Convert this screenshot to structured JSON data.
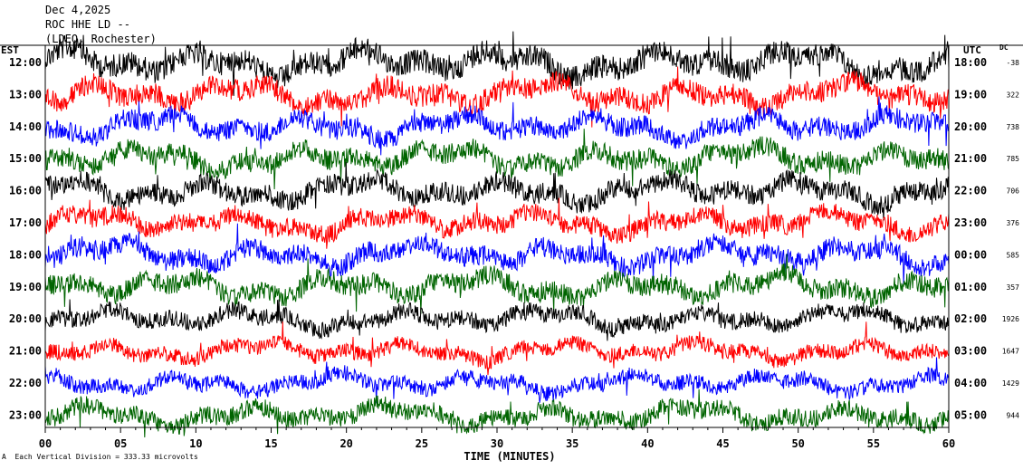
{
  "header": {
    "date": "Dec 4,2025",
    "station": "ROC HHE LD --",
    "location": "(LDEO, Rochester)"
  },
  "left_axis_label": "EST",
  "right_axis_label": "UTC",
  "dc_label": "DC",
  "footer": "Each Vertical Division = 333.33 microvolts",
  "footer_mark": "A",
  "colors": {
    "trace_cycle": [
      "#000000",
      "#ff0000",
      "#0000ff",
      "#006400"
    ],
    "frame": "#000000"
  },
  "chart_data": {
    "type": "line",
    "xlabel": "TIME (MINUTES)",
    "xlim": [
      0,
      60
    ],
    "x_ticks": [
      "00",
      "05",
      "10",
      "15",
      "20",
      "25",
      "30",
      "35",
      "40",
      "45",
      "50",
      "55",
      "60"
    ],
    "series": [
      {
        "est": "12:00",
        "utc": "18:00",
        "dc": "-38",
        "color": "#000000",
        "amp": 1.0
      },
      {
        "est": "13:00",
        "utc": "19:00",
        "dc": "322",
        "color": "#ff0000",
        "amp": 0.9
      },
      {
        "est": "14:00",
        "utc": "20:00",
        "dc": "738",
        "color": "#0000ff",
        "amp": 0.85
      },
      {
        "est": "15:00",
        "utc": "21:00",
        "dc": "785",
        "color": "#006400",
        "amp": 0.85
      },
      {
        "est": "16:00",
        "utc": "22:00",
        "dc": "706",
        "color": "#000000",
        "amp": 0.85
      },
      {
        "est": "17:00",
        "utc": "23:00",
        "dc": "376",
        "color": "#ff0000",
        "amp": 0.8
      },
      {
        "est": "18:00",
        "utc": "00:00",
        "dc": "585",
        "color": "#0000ff",
        "amp": 0.85
      },
      {
        "est": "19:00",
        "utc": "01:00",
        "dc": "357",
        "color": "#006400",
        "amp": 0.85
      },
      {
        "est": "20:00",
        "utc": "02:00",
        "dc": "1926",
        "color": "#000000",
        "amp": 0.7
      },
      {
        "est": "21:00",
        "utc": "03:00",
        "dc": "1647",
        "color": "#ff0000",
        "amp": 0.65
      },
      {
        "est": "22:00",
        "utc": "04:00",
        "dc": "1429",
        "color": "#0000ff",
        "amp": 0.65
      },
      {
        "est": "23:00",
        "utc": "05:00",
        "dc": "944",
        "color": "#006400",
        "amp": 0.75
      }
    ]
  }
}
